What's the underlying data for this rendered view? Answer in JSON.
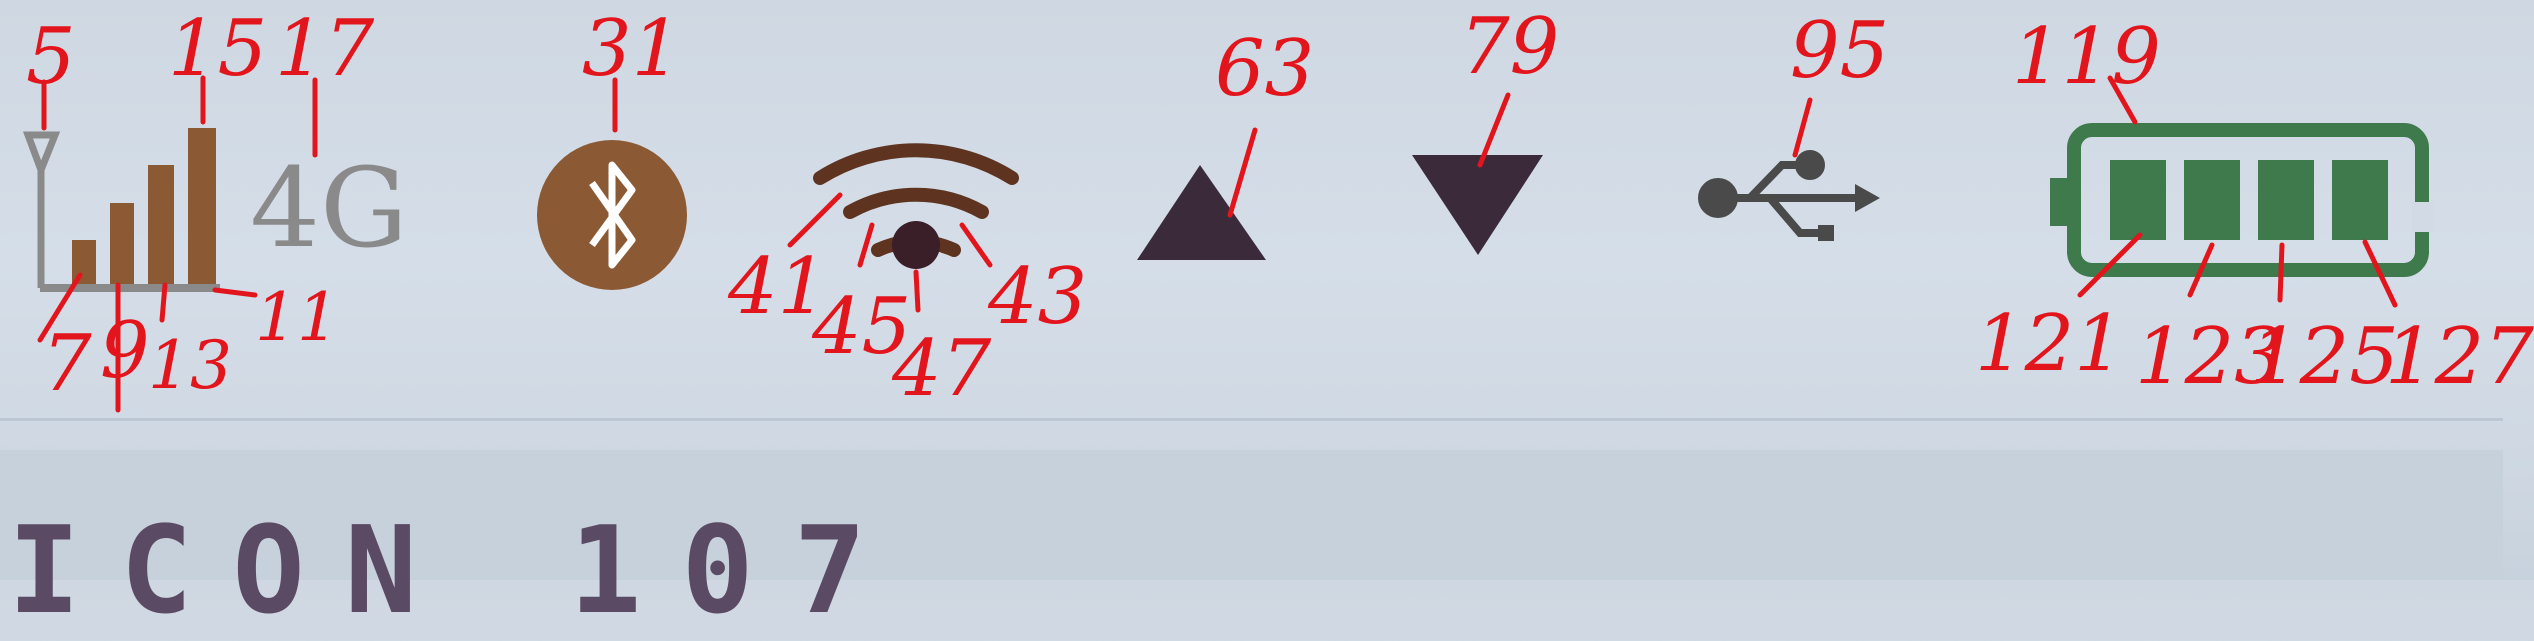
{
  "display": {
    "network_type": "4G",
    "bottom_text": "ICON 107"
  },
  "colors": {
    "icon_brown": "#8b5a34",
    "signal_gray": "#8a8a8a",
    "dark_icon": "#3a2a3a",
    "battery_green": "#3f7a4c",
    "usb_gray": "#4a4a4a",
    "annotation_red": "#e3151c"
  },
  "icons": [
    "antenna-icon",
    "signal-bars-icon",
    "network-4g-icon",
    "bluetooth-icon",
    "wifi-icon",
    "upload-arrow-icon",
    "download-arrow-icon",
    "usb-icon",
    "battery-icon"
  ],
  "annotations": {
    "a5": "5",
    "a15": "15",
    "a17": "17",
    "a31": "31",
    "a63": "63",
    "a79": "79",
    "a95": "95",
    "a119": "119",
    "a7": "7",
    "a9": "9",
    "a13": "13",
    "a11": "11",
    "a41": "41",
    "a45": "45",
    "a47": "47",
    "a43": "43",
    "a121": "121",
    "a123": "123",
    "a125": "125",
    "a127": "127"
  }
}
